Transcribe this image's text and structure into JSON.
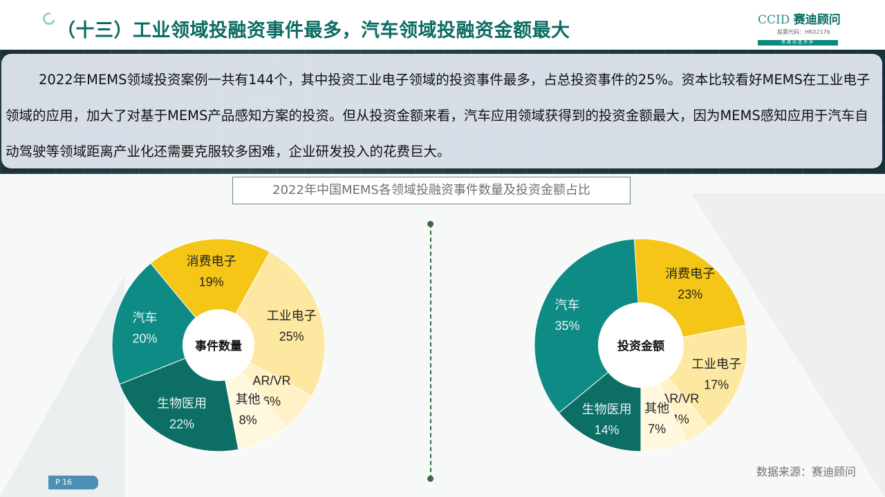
{
  "header": {
    "title": "（十三）工业领域投融资事件最多，汽车领域投融资金额最大",
    "logo": {
      "main": "CCID",
      "cn": "赛迪顾问",
      "code": "股票代码：HK02176",
      "slogan": "思路创造世界"
    }
  },
  "summary": "2022年MEMS领域投资案例一共有144个，其中投资工业电子领域的投资事件最多，占总投资事件的25%。资本比较看好MEMS在工业电子领域的应用，加大了对基于MEMS产品感知方案的投资。但从投资金额来看，汽车应用领域获得到的投资金额最大，因为MEMS感知应用于汽车自动驾驶等领域距离产业化还需要克服较多困难，企业研发投入的花费巨大。",
  "subtitle": "2022年中国MEMS各领域投融资事件数量及投资金额占比",
  "colors": {
    "teal": "#0f8b86",
    "dark_teal": "#0d6e66",
    "gold": "#f5c518",
    "light_yellow": "#fde8a2",
    "pale_yellow": "#fef2c6",
    "cream": "#fff8de",
    "title": "#0a6b63"
  },
  "chart_data": [
    {
      "type": "pie",
      "donut": true,
      "center_label": "事件数量",
      "slices": [
        {
          "label": "消费电子",
          "value": 19,
          "value_label": "19%",
          "color": "#f5c518"
        },
        {
          "label": "工业电子",
          "value": 25,
          "value_label": "25%",
          "color": "#fde8a2"
        },
        {
          "label": "AR/VR",
          "value": 6,
          "value_label": "6%",
          "color": "#fef2c6"
        },
        {
          "label": "其他",
          "value": 8,
          "value_label": "8%",
          "color": "#fff8de"
        },
        {
          "label": "生物医用",
          "value": 22,
          "value_label": "22%",
          "color": "#0d6e66"
        },
        {
          "label": "汽车",
          "value": 20,
          "value_label": "20%",
          "color": "#0f8b86"
        }
      ]
    },
    {
      "type": "pie",
      "donut": true,
      "center_label": "投资金额",
      "slices": [
        {
          "label": "消费电子",
          "value": 23,
          "value_label": "23%",
          "color": "#f5c518"
        },
        {
          "label": "工业电子",
          "value": 17,
          "value_label": "17%",
          "color": "#fde8a2"
        },
        {
          "label": "AR/VR",
          "value": 4,
          "value_label": "4%",
          "color": "#fef2c6"
        },
        {
          "label": "其他",
          "value": 7,
          "value_label": "7%",
          "color": "#fff8de"
        },
        {
          "label": "生物医用",
          "value": 14,
          "value_label": "14%",
          "color": "#0d6e66"
        },
        {
          "label": "汽车",
          "value": 35,
          "value_label": "35%",
          "color": "#0f8b86"
        }
      ]
    }
  ],
  "footer": {
    "page": "P 16",
    "source": "数据来源：赛迪顾问"
  }
}
